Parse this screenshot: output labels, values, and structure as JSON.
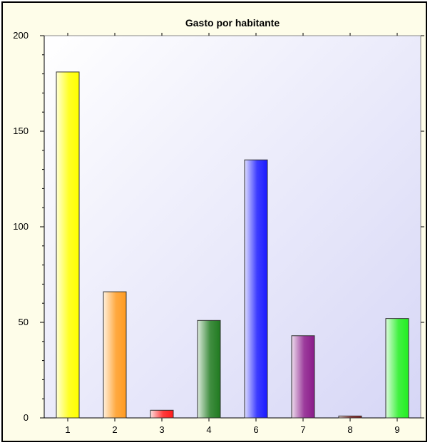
{
  "chart_data": {
    "type": "bar",
    "title": "Gasto por habitante",
    "xlabel": "",
    "ylabel": "",
    "categories": [
      "1",
      "2",
      "3",
      "4",
      "6",
      "7",
      "8",
      "9"
    ],
    "values": [
      181,
      66,
      4,
      51,
      135,
      43,
      1,
      52
    ],
    "ylim": [
      0,
      200
    ],
    "yticks": [
      0,
      50,
      100,
      150,
      200
    ],
    "grid": false,
    "legend": "none",
    "colors": [
      "#ffff00",
      "#ff9a1f",
      "#ff1a1a",
      "#1f7a1f",
      "#1a1aff",
      "#8a1a8a",
      "#8a1a1a",
      "#22ee22"
    ]
  }
}
